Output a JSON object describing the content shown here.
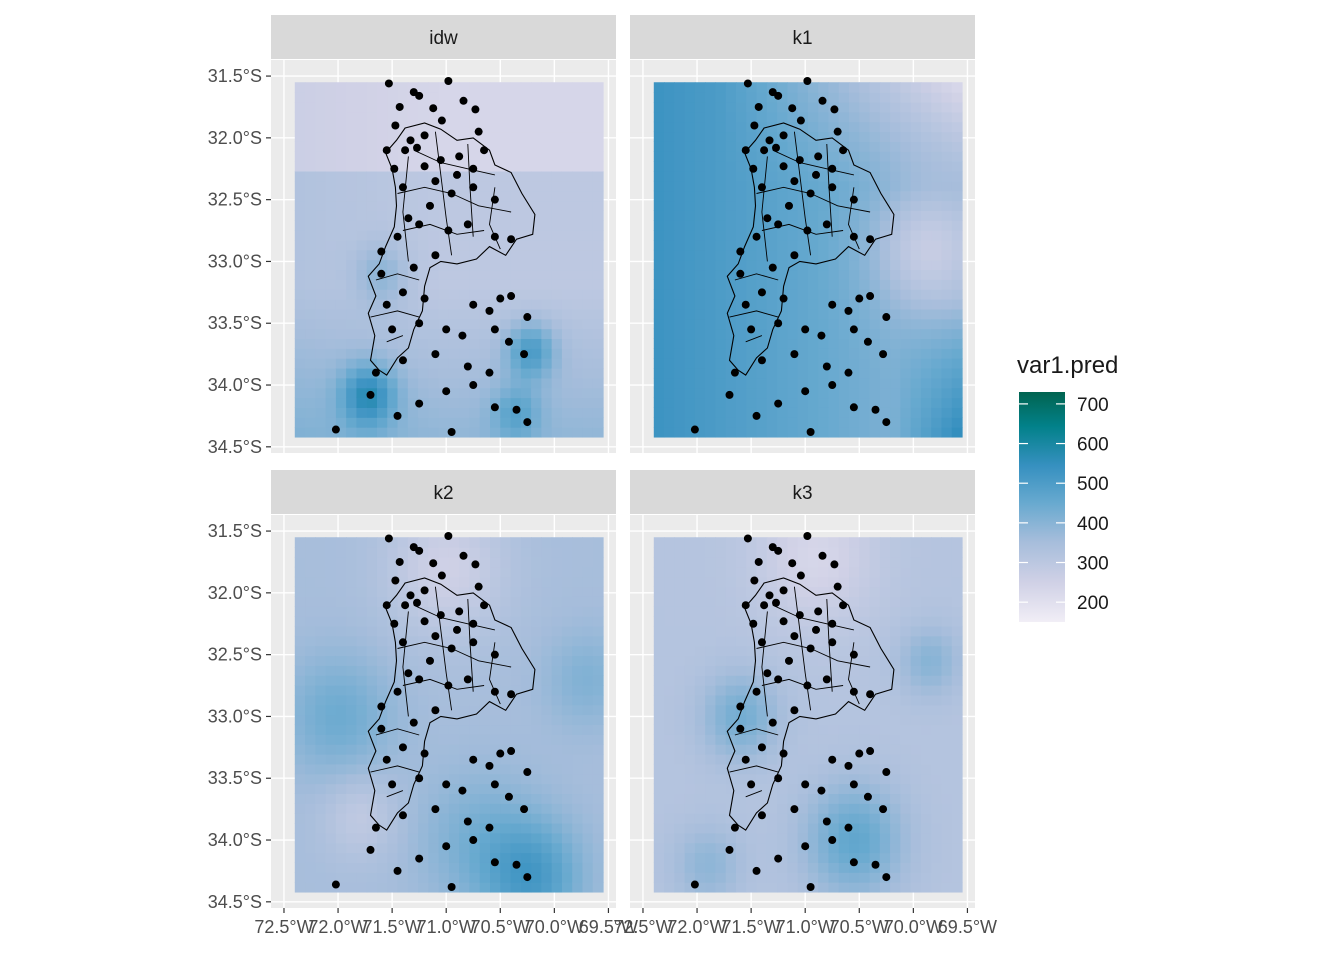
{
  "chart_data": {
    "type": "heatmap",
    "title": "",
    "xlabel": "",
    "ylabel": "",
    "facets": [
      "idw",
      "k1",
      "k2",
      "k3"
    ],
    "x_tick_labels": [
      "72.5°W",
      "72.0°W",
      "71.5°W",
      "71.0°W",
      "70.5°W",
      "70.0°W",
      "69.5°W"
    ],
    "x_ticks": [
      -72.5,
      -72.0,
      -71.5,
      -71.0,
      -70.5,
      -70.0,
      -69.5
    ],
    "y_tick_labels": [
      "31.5°S",
      "32.0°S",
      "32.5°S",
      "33.0°S",
      "33.5°S",
      "34.0°S",
      "34.5°S"
    ],
    "y_ticks": [
      -31.5,
      -32.0,
      -32.5,
      -33.0,
      -33.5,
      -34.0,
      -34.5
    ],
    "xlim": [
      -72.62,
      -69.43
    ],
    "ylim": [
      -34.55,
      -31.37
    ],
    "grid_extent": {
      "lon": [
        -72.4,
        -69.55
      ],
      "lat": [
        -34.42,
        -31.55
      ]
    },
    "legend": {
      "title": "var1.pred",
      "position": "right",
      "ticks": [
        700,
        600,
        500,
        400,
        300,
        200
      ],
      "range": [
        150,
        730
      ],
      "colors": [
        "#f1eef6",
        "#d0d1e6",
        "#a6bddb",
        "#67a9cf",
        "#3690c0",
        "#02818a",
        "#016450"
      ]
    },
    "colors": {
      "panel_bg": "#ebebeb",
      "grid": "#ffffff",
      "strip_bg": "#d9d9d9",
      "points": "#000000"
    },
    "points_lonlat": [
      [
        -71.53,
        -31.56
      ],
      [
        -71.25,
        -31.66
      ],
      [
        -71.3,
        -31.63
      ],
      [
        -70.98,
        -31.54
      ],
      [
        -70.84,
        -31.7
      ],
      [
        -70.73,
        -31.77
      ],
      [
        -70.7,
        -31.95
      ],
      [
        -71.43,
        -31.75
      ],
      [
        -71.47,
        -31.9
      ],
      [
        -71.12,
        -31.76
      ],
      [
        -71.04,
        -31.86
      ],
      [
        -71.2,
        -31.98
      ],
      [
        -71.33,
        -32.02
      ],
      [
        -71.55,
        -32.1
      ],
      [
        -71.38,
        -32.1
      ],
      [
        -71.27,
        -32.08
      ],
      [
        -71.48,
        -32.25
      ],
      [
        -71.2,
        -32.23
      ],
      [
        -71.05,
        -32.18
      ],
      [
        -70.88,
        -32.15
      ],
      [
        -71.4,
        -32.4
      ],
      [
        -71.1,
        -32.35
      ],
      [
        -70.9,
        -32.3
      ],
      [
        -70.75,
        -32.25
      ],
      [
        -70.65,
        -32.1
      ],
      [
        -71.35,
        -32.65
      ],
      [
        -71.15,
        -32.55
      ],
      [
        -70.95,
        -32.45
      ],
      [
        -70.75,
        -32.4
      ],
      [
        -70.55,
        -32.5
      ],
      [
        -71.6,
        -32.92
      ],
      [
        -71.45,
        -32.8
      ],
      [
        -71.25,
        -32.7
      ],
      [
        -70.98,
        -32.75
      ],
      [
        -70.8,
        -32.7
      ],
      [
        -70.55,
        -32.8
      ],
      [
        -70.4,
        -32.82
      ],
      [
        -71.6,
        -33.1
      ],
      [
        -71.3,
        -33.05
      ],
      [
        -71.1,
        -32.95
      ],
      [
        -71.55,
        -33.35
      ],
      [
        -71.4,
        -33.25
      ],
      [
        -71.2,
        -33.3
      ],
      [
        -70.75,
        -33.35
      ],
      [
        -70.6,
        -33.4
      ],
      [
        -70.5,
        -33.3
      ],
      [
        -70.4,
        -33.28
      ],
      [
        -70.25,
        -33.45
      ],
      [
        -71.5,
        -33.55
      ],
      [
        -71.25,
        -33.5
      ],
      [
        -71.0,
        -33.55
      ],
      [
        -70.85,
        -33.6
      ],
      [
        -70.55,
        -33.55
      ],
      [
        -70.42,
        -33.65
      ],
      [
        -70.28,
        -33.75
      ],
      [
        -71.65,
        -33.9
      ],
      [
        -71.4,
        -33.8
      ],
      [
        -71.1,
        -33.75
      ],
      [
        -70.8,
        -33.85
      ],
      [
        -70.6,
        -33.9
      ],
      [
        -71.7,
        -34.08
      ],
      [
        -71.45,
        -34.25
      ],
      [
        -71.25,
        -34.15
      ],
      [
        -71.0,
        -34.05
      ],
      [
        -70.75,
        -34.0
      ],
      [
        -70.55,
        -34.18
      ],
      [
        -70.35,
        -34.2
      ],
      [
        -70.25,
        -34.3
      ],
      [
        -70.95,
        -34.38
      ],
      [
        -72.02,
        -34.36
      ]
    ]
  }
}
